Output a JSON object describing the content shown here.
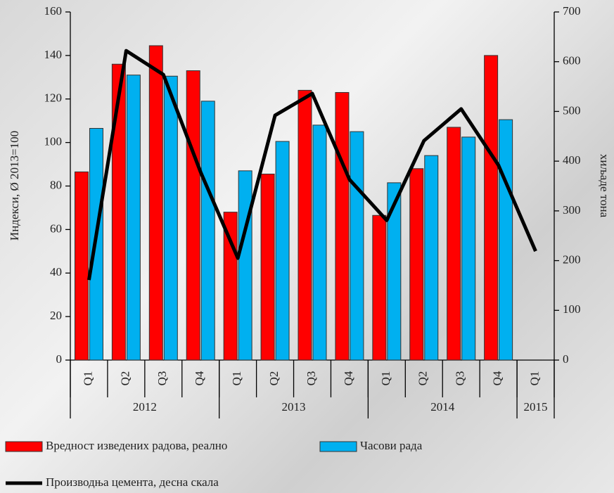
{
  "chart_data": {
    "type": "bar-line",
    "categories": [
      "Q1",
      "Q2",
      "Q3",
      "Q4",
      "Q1",
      "Q2",
      "Q3",
      "Q4",
      "Q1",
      "Q2",
      "Q3",
      "Q4",
      "Q1"
    ],
    "x_groups": [
      {
        "label": "2012",
        "count": 4
      },
      {
        "label": "2013",
        "count": 4
      },
      {
        "label": "2014",
        "count": 4
      },
      {
        "label": "2015",
        "count": 1
      }
    ],
    "series": [
      {
        "name": "Вредност изведених радова, реално",
        "type": "bar",
        "color": "#ff0000",
        "values": [
          86.5,
          136,
          144.5,
          133,
          68,
          85.5,
          124,
          123,
          66.5,
          88,
          107,
          140,
          null
        ]
      },
      {
        "name": "Часови рада",
        "type": "bar",
        "color": "#00b0f0",
        "values": [
          106.5,
          131,
          130.5,
          119,
          87,
          100.5,
          108,
          105,
          81.5,
          94,
          102.5,
          110.5,
          null
        ]
      },
      {
        "name": "Производња цемента, десна скала",
        "type": "line",
        "axis": "y2",
        "color": "#000000",
        "values": [
          161,
          622,
          574,
          378,
          205,
          492,
          536,
          363,
          281,
          441,
          505,
          392,
          219
        ]
      }
    ],
    "ylabel": "Индекси, Ø 2013=100",
    "y2label": "хиљаде тона",
    "ylim": [
      0,
      160
    ],
    "yticks": [
      0,
      20,
      40,
      60,
      80,
      100,
      120,
      140,
      160
    ],
    "y2lim": [
      0,
      700
    ],
    "y2ticks": [
      0,
      100,
      200,
      300,
      400,
      500,
      600,
      700
    ]
  }
}
